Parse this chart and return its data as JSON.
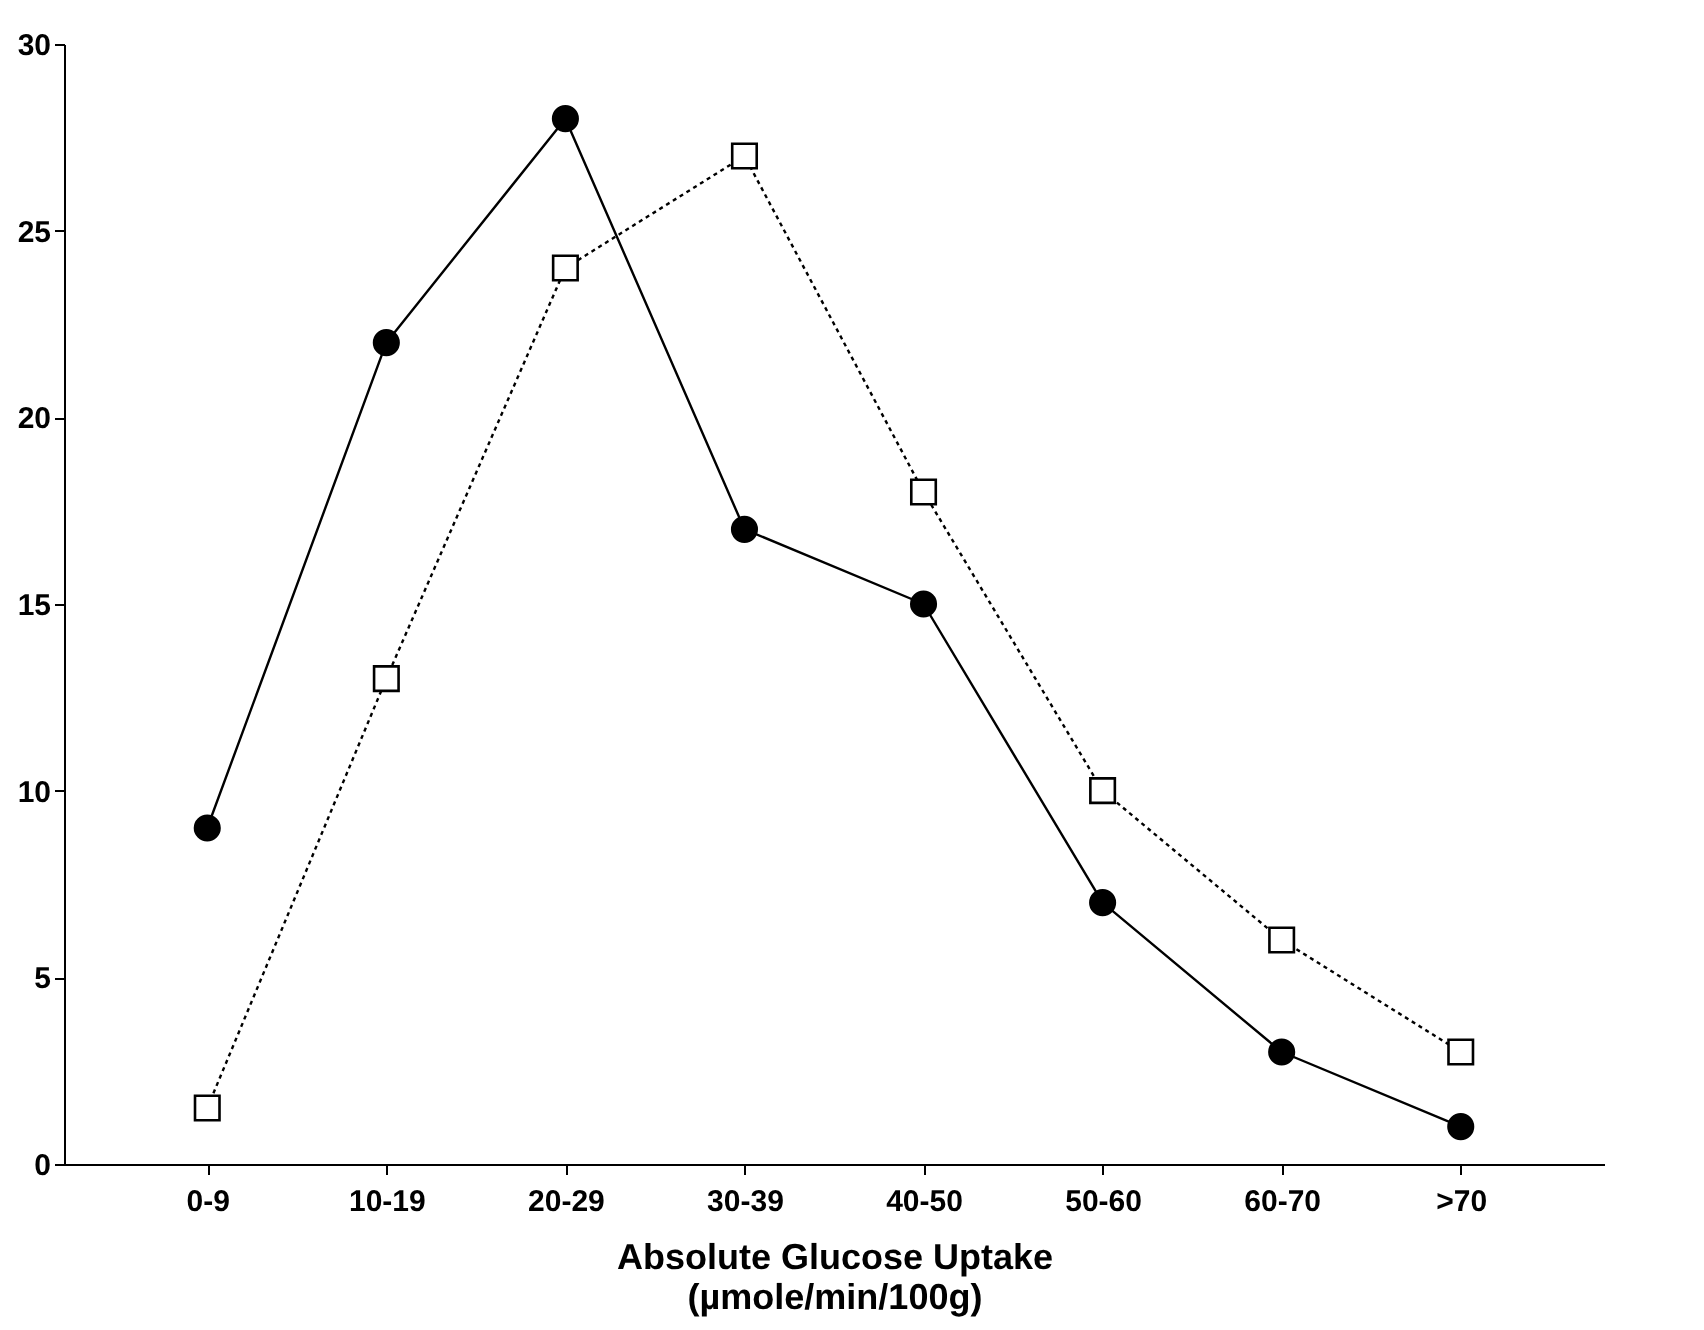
{
  "chart_data": {
    "type": "line",
    "categories": [
      "0-9",
      "10-19",
      "20-29",
      "30-39",
      "40-50",
      "50-60",
      "60-70",
      ">70"
    ],
    "series": [
      {
        "color": "#000000",
        "marker": "circle",
        "line_style": "solid",
        "values": [
          9,
          22,
          28,
          17,
          15,
          7,
          3,
          1
        ]
      },
      {
        "color": "#000000",
        "marker": "square",
        "line_style": "dotted",
        "values": [
          1.5,
          13,
          24,
          27,
          18,
          10,
          6,
          3
        ]
      }
    ],
    "xlabel": "Absolute Glucose Uptake\n(µmole/min/100g)",
    "ylim": [
      0,
      30
    ],
    "yticks": [
      0,
      5,
      10,
      15,
      20,
      25,
      30
    ]
  }
}
